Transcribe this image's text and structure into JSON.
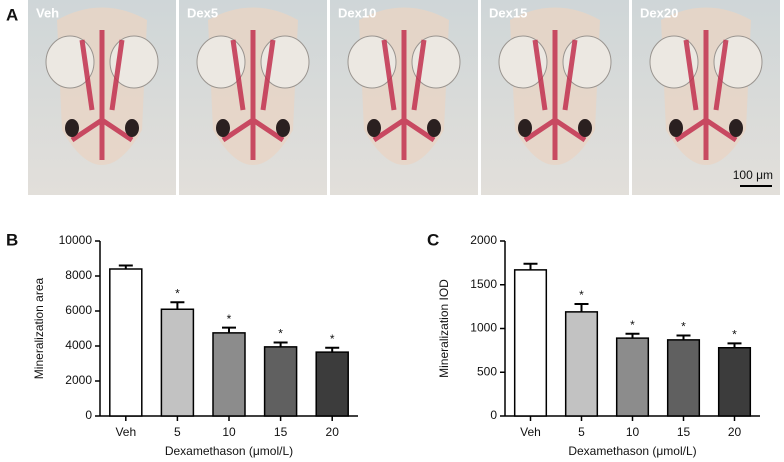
{
  "panel_a": {
    "label": "A",
    "images": [
      "Veh",
      "Dex5",
      "Dex10",
      "Dex15",
      "Dex20"
    ],
    "scale_bar": "100 μm"
  },
  "chart_data": [
    {
      "type": "bar",
      "panel_label": "B",
      "y_label": "Mineralization area",
      "x_label": "Dexamethason (μmol/L)",
      "categories": [
        "Veh",
        "5",
        "10",
        "15",
        "20"
      ],
      "values": [
        8400,
        6100,
        4750,
        3950,
        3650
      ],
      "errors": [
        200,
        400,
        300,
        250,
        250
      ],
      "significance": [
        null,
        "*",
        "*",
        "*",
        "*"
      ],
      "colors": [
        "#ffffff",
        "#c2c2c2",
        "#8c8c8c",
        "#606060",
        "#3c3c3c"
      ],
      "ylim": [
        0,
        10000
      ],
      "yticks": [
        0,
        2000,
        4000,
        6000,
        8000,
        10000
      ]
    },
    {
      "type": "bar",
      "panel_label": "C",
      "y_label": "Mineralization IOD",
      "x_label": "Dexamethason (μmol/L)",
      "categories": [
        "Veh",
        "5",
        "10",
        "15",
        "20"
      ],
      "values": [
        1670,
        1190,
        890,
        870,
        780
      ],
      "errors": [
        70,
        90,
        50,
        50,
        50
      ],
      "significance": [
        null,
        "*",
        "*",
        "*",
        "*"
      ],
      "colors": [
        "#ffffff",
        "#c2c2c2",
        "#8c8c8c",
        "#606060",
        "#3c3c3c"
      ],
      "ylim": [
        0,
        2000
      ],
      "yticks": [
        0,
        500,
        1000,
        1500,
        2000
      ]
    }
  ]
}
